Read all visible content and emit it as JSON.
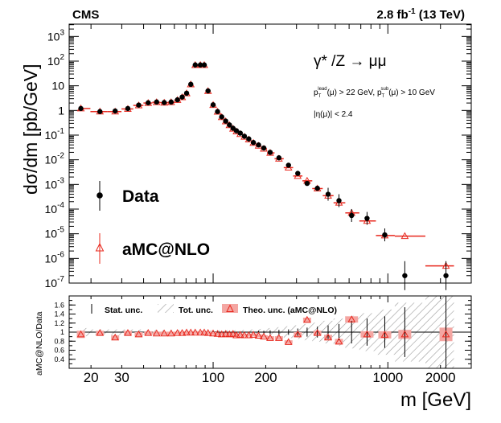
{
  "header": {
    "experiment": "CMS",
    "lumi_value": "2.8 fb",
    "lumi_exp": "-1",
    "energy": " (13 TeV)"
  },
  "chart_data": {
    "type": "scatter",
    "title": "",
    "process": "γ* /Z → μμ",
    "cut_pt_lead": "p",
    "cut_pt_lead_sup": "lead",
    "cut_pt_lead_sub": "T",
    "cut_pt_lead_rest": "(μ) > 22 GeV, ",
    "cut_pt_sub": "p",
    "cut_pt_sub_sup": "sub",
    "cut_pt_sub_sub": "T",
    "cut_pt_sub_rest": "(μ) > 10 GeV",
    "cut_eta": "|η(μ)| < 2.4",
    "ylabel": "dσ/dm [pb/GeV]",
    "xlabel": "m [GeV]",
    "ratio_ylabel": "aMC@NLO/Data",
    "xlim": [
      15,
      3000
    ],
    "ylim_log": [
      -7,
      3.5
    ],
    "ratio_ylim": [
      0.2,
      1.8
    ],
    "x_tick_labels": [
      "20",
      "30",
      "100",
      "200",
      "1000",
      "2000"
    ],
    "y_tick_labels": [
      {
        "base": "10",
        "exp": "3"
      },
      {
        "base": "10",
        "exp": "2"
      },
      {
        "base": "10",
        "exp": ""
      },
      {
        "base": "1",
        "exp": ""
      },
      {
        "base": "10",
        "exp": "-1"
      },
      {
        "base": "10",
        "exp": "-2"
      },
      {
        "base": "10",
        "exp": "-3"
      },
      {
        "base": "10",
        "exp": "-4"
      },
      {
        "base": "10",
        "exp": "-5"
      },
      {
        "base": "10",
        "exp": "-6"
      },
      {
        "base": "10",
        "exp": "-7"
      }
    ],
    "ratio_tick_labels": [
      "1.6",
      "1.4",
      "1.2",
      "1",
      "0.8",
      "0.6",
      "0.4"
    ],
    "legend": {
      "data_label": "Data",
      "mc_label": "aMC@NLO",
      "position": "lower-left"
    },
    "ratio_legend": {
      "stat": "Stat. unc.",
      "tot": "Tot. unc.",
      "theo": "Theo. unc. (aMC@NLO)",
      "position": "top"
    },
    "series": [
      {
        "name": "Data",
        "x": [
          17.5,
          22.5,
          27.5,
          32.5,
          37.5,
          42.5,
          47.5,
          52.5,
          57.5,
          62.5,
          66.5,
          70.5,
          74.5,
          79,
          84.5,
          89,
          93.5,
          100,
          106,
          112,
          118,
          124,
          130,
          136,
          143,
          151,
          160,
          170,
          182,
          195,
          212,
          238,
          270,
          305,
          345,
          395,
          455,
          525,
          620,
          760,
          960,
          1250,
          2150
        ],
        "values": [
          1.2,
          0.9,
          0.95,
          1.2,
          1.65,
          2.05,
          2.2,
          2.1,
          2.2,
          2.7,
          3.5,
          5.0,
          11.5,
          70,
          70,
          70,
          6.2,
          1.7,
          0.9,
          0.55,
          0.37,
          0.26,
          0.19,
          0.15,
          0.12,
          0.09,
          0.07,
          0.05,
          0.04,
          0.03,
          0.02,
          0.012,
          0.006,
          0.0028,
          0.0011,
          0.0007,
          0.0004,
          0.00022,
          5.5e-05,
          4.2e-05,
          9e-06,
          2e-07,
          2e-07
        ]
      },
      {
        "name": "aMC@NLO",
        "x": [
          17.5,
          22.5,
          27.5,
          32.5,
          37.5,
          42.5,
          47.5,
          52.5,
          57.5,
          62.5,
          66.5,
          70.5,
          74.5,
          79,
          84.5,
          89,
          93.5,
          100,
          106,
          112,
          118,
          124,
          130,
          136,
          143,
          151,
          160,
          170,
          182,
          195,
          212,
          238,
          270,
          305,
          345,
          395,
          455,
          525,
          620,
          760,
          960,
          1250,
          2150
        ],
        "values": [
          1.2,
          0.9,
          0.9,
          1.15,
          1.6,
          2.0,
          2.15,
          2.05,
          2.15,
          2.65,
          3.4,
          4.9,
          11.3,
          69,
          69,
          69,
          6.1,
          1.65,
          0.88,
          0.53,
          0.36,
          0.25,
          0.18,
          0.14,
          0.11,
          0.085,
          0.066,
          0.048,
          0.037,
          0.028,
          0.019,
          0.011,
          0.0048,
          0.0022,
          0.0014,
          0.00068,
          0.00035,
          0.00018,
          7e-05,
          3.3e-05,
          8.5e-06,
          8e-06,
          5e-07
        ]
      }
    ],
    "ratio": {
      "x": [
        17.5,
        22.5,
        27.5,
        32.5,
        37.5,
        42.5,
        47.5,
        52.5,
        57.5,
        62.5,
        66.5,
        70.5,
        74.5,
        79,
        84.5,
        89,
        93.5,
        100,
        106,
        112,
        118,
        124,
        130,
        136,
        143,
        151,
        160,
        170,
        182,
        195,
        212,
        238,
        270,
        305,
        345,
        395,
        455,
        525,
        620,
        760,
        960,
        1250,
        2150
      ],
      "values": [
        0.95,
        0.98,
        0.88,
        0.98,
        0.95,
        0.98,
        0.97,
        0.97,
        0.97,
        0.98,
        0.98,
        0.99,
        0.99,
        0.99,
        0.99,
        0.99,
        0.98,
        0.97,
        0.96,
        0.95,
        0.96,
        0.95,
        0.96,
        0.93,
        0.94,
        0.93,
        0.93,
        0.94,
        0.92,
        0.9,
        0.87,
        0.87,
        0.78,
        0.95,
        1.27,
        0.98,
        0.88,
        0.79,
        1.28,
        0.95,
        0.94,
        0.95,
        0.95
      ],
      "stat_unc": [
        0.01,
        0.01,
        0.01,
        0.01,
        0.01,
        0.01,
        0.01,
        0.01,
        0.01,
        0.01,
        0.01,
        0.01,
        0.01,
        0.01,
        0.01,
        0.01,
        0.01,
        0.01,
        0.01,
        0.01,
        0.01,
        0.01,
        0.01,
        0.01,
        0.02,
        0.02,
        0.02,
        0.02,
        0.03,
        0.03,
        0.04,
        0.05,
        0.06,
        0.08,
        0.1,
        0.12,
        0.15,
        0.18,
        0.25,
        0.3,
        0.35,
        0.55,
        0.8
      ],
      "theo_unc": [
        0.08,
        0.05,
        0.05,
        0.05,
        0.05,
        0.04,
        0.04,
        0.04,
        0.04,
        0.03,
        0.03,
        0.03,
        0.03,
        0.03,
        0.03,
        0.03,
        0.03,
        0.03,
        0.03,
        0.03,
        0.03,
        0.03,
        0.03,
        0.03,
        0.03,
        0.03,
        0.03,
        0.03,
        0.03,
        0.03,
        0.04,
        0.04,
        0.04,
        0.05,
        0.05,
        0.05,
        0.06,
        0.06,
        0.07,
        0.07,
        0.08,
        0.1,
        0.15
      ],
      "tot_unc": [
        0.09,
        0.06,
        0.06,
        0.06,
        0.06,
        0.05,
        0.05,
        0.05,
        0.05,
        0.04,
        0.04,
        0.04,
        0.04,
        0.04,
        0.04,
        0.04,
        0.04,
        0.04,
        0.04,
        0.04,
        0.04,
        0.04,
        0.04,
        0.04,
        0.05,
        0.05,
        0.06,
        0.06,
        0.07,
        0.08,
        0.09,
        0.11,
        0.13,
        0.15,
        0.18,
        0.21,
        0.25,
        0.3,
        0.36,
        0.42,
        0.5,
        0.65,
        0.8
      ]
    }
  }
}
